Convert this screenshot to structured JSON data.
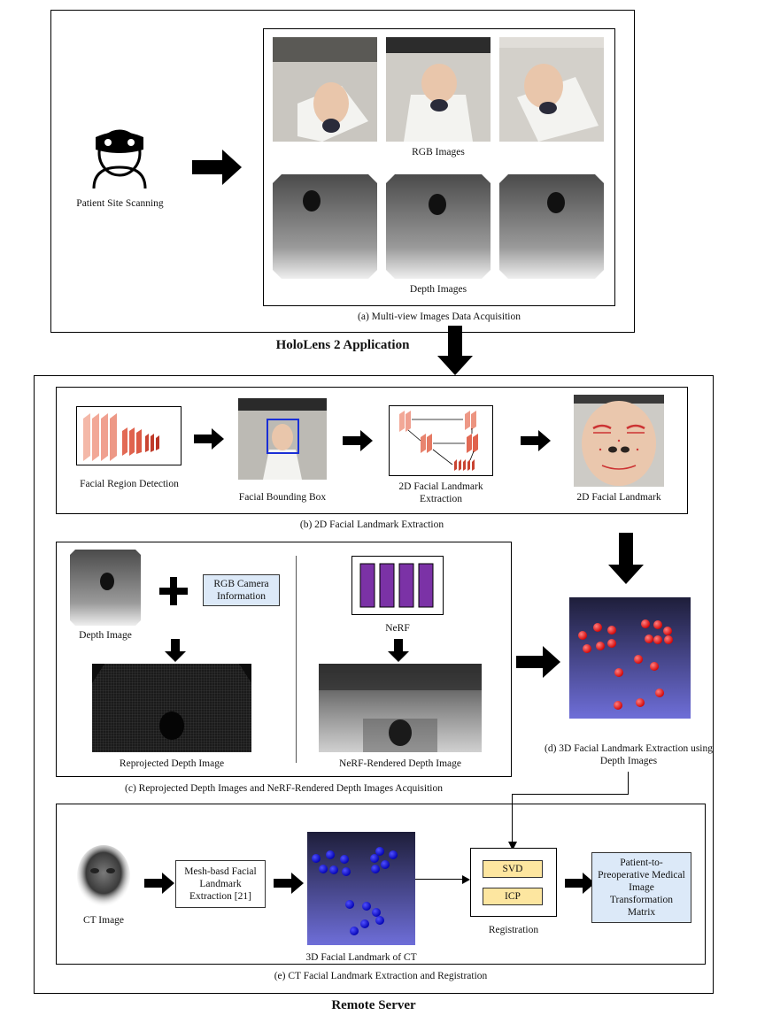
{
  "section_a": {
    "caption": "(a) Multi-view Images Data Acquisition",
    "patient_label": "Patient Site Scanning",
    "rgb_label": "RGB Images",
    "depth_label": "Depth Images"
  },
  "holo_title": "HoloLens 2 Application",
  "section_b": {
    "caption": "(b) 2D Facial Landmark Extraction",
    "steps": [
      "Facial Region Detection",
      "Facial Bounding Box",
      "2D Facial Landmark Extraction",
      "2D Facial Landmark"
    ]
  },
  "section_c": {
    "caption": "(c) Reprojected Depth Images and NeRF-Rendered Depth Images Acquisition",
    "depth_image_label": "Depth Image",
    "rgb_info": "RGB Camera Information",
    "reprojected_label": "Reprojected Depth Image",
    "nerf_label": "NeRF",
    "nerf_rendered_label": "NeRF-Rendered Depth Image"
  },
  "section_d": {
    "caption": "(d) 3D Facial Landmark Extraction using Depth Images"
  },
  "section_e": {
    "caption": "(e) CT Facial Landmark Extraction and Registration",
    "ct_label": "CT Image",
    "mesh_label": "Mesh-basd Facial Landmark Extraction [21]",
    "ct_landmark_label": "3D Facial Landmark of CT",
    "svd": "SVD",
    "icp": "ICP",
    "registration_label": "Registration",
    "matrix_label": "Patient-to-Preoperative Medical Image Transformation Matrix"
  },
  "remote_title": "Remote Server"
}
